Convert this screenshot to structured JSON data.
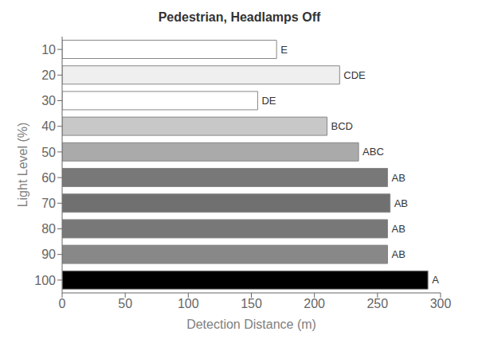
{
  "chart_data": {
    "type": "bar",
    "orientation": "horizontal",
    "title": "Pedestrian, Headlamps Off",
    "xlabel": "Detection Distance (m)",
    "ylabel": "Light Level (%)",
    "categories": [
      10,
      20,
      30,
      40,
      50,
      60,
      70,
      80,
      90,
      100
    ],
    "values": [
      170,
      220,
      155,
      210,
      235,
      258,
      260,
      258,
      258,
      290
    ],
    "annotations": [
      "E",
      "CDE",
      "DE",
      "BCD",
      "ABC",
      "AB",
      "AB",
      "AB",
      "AB",
      "A"
    ],
    "colors": [
      "white",
      "#efefef",
      "white",
      "#c8c8c8",
      "#aaaaaa",
      "#787878",
      "#707070",
      "#787878",
      "#888888",
      "#000000"
    ],
    "xlim": [
      0,
      300
    ],
    "xticks": [
      0,
      50,
      100,
      150,
      200,
      250,
      300
    ],
    "grid": false
  }
}
